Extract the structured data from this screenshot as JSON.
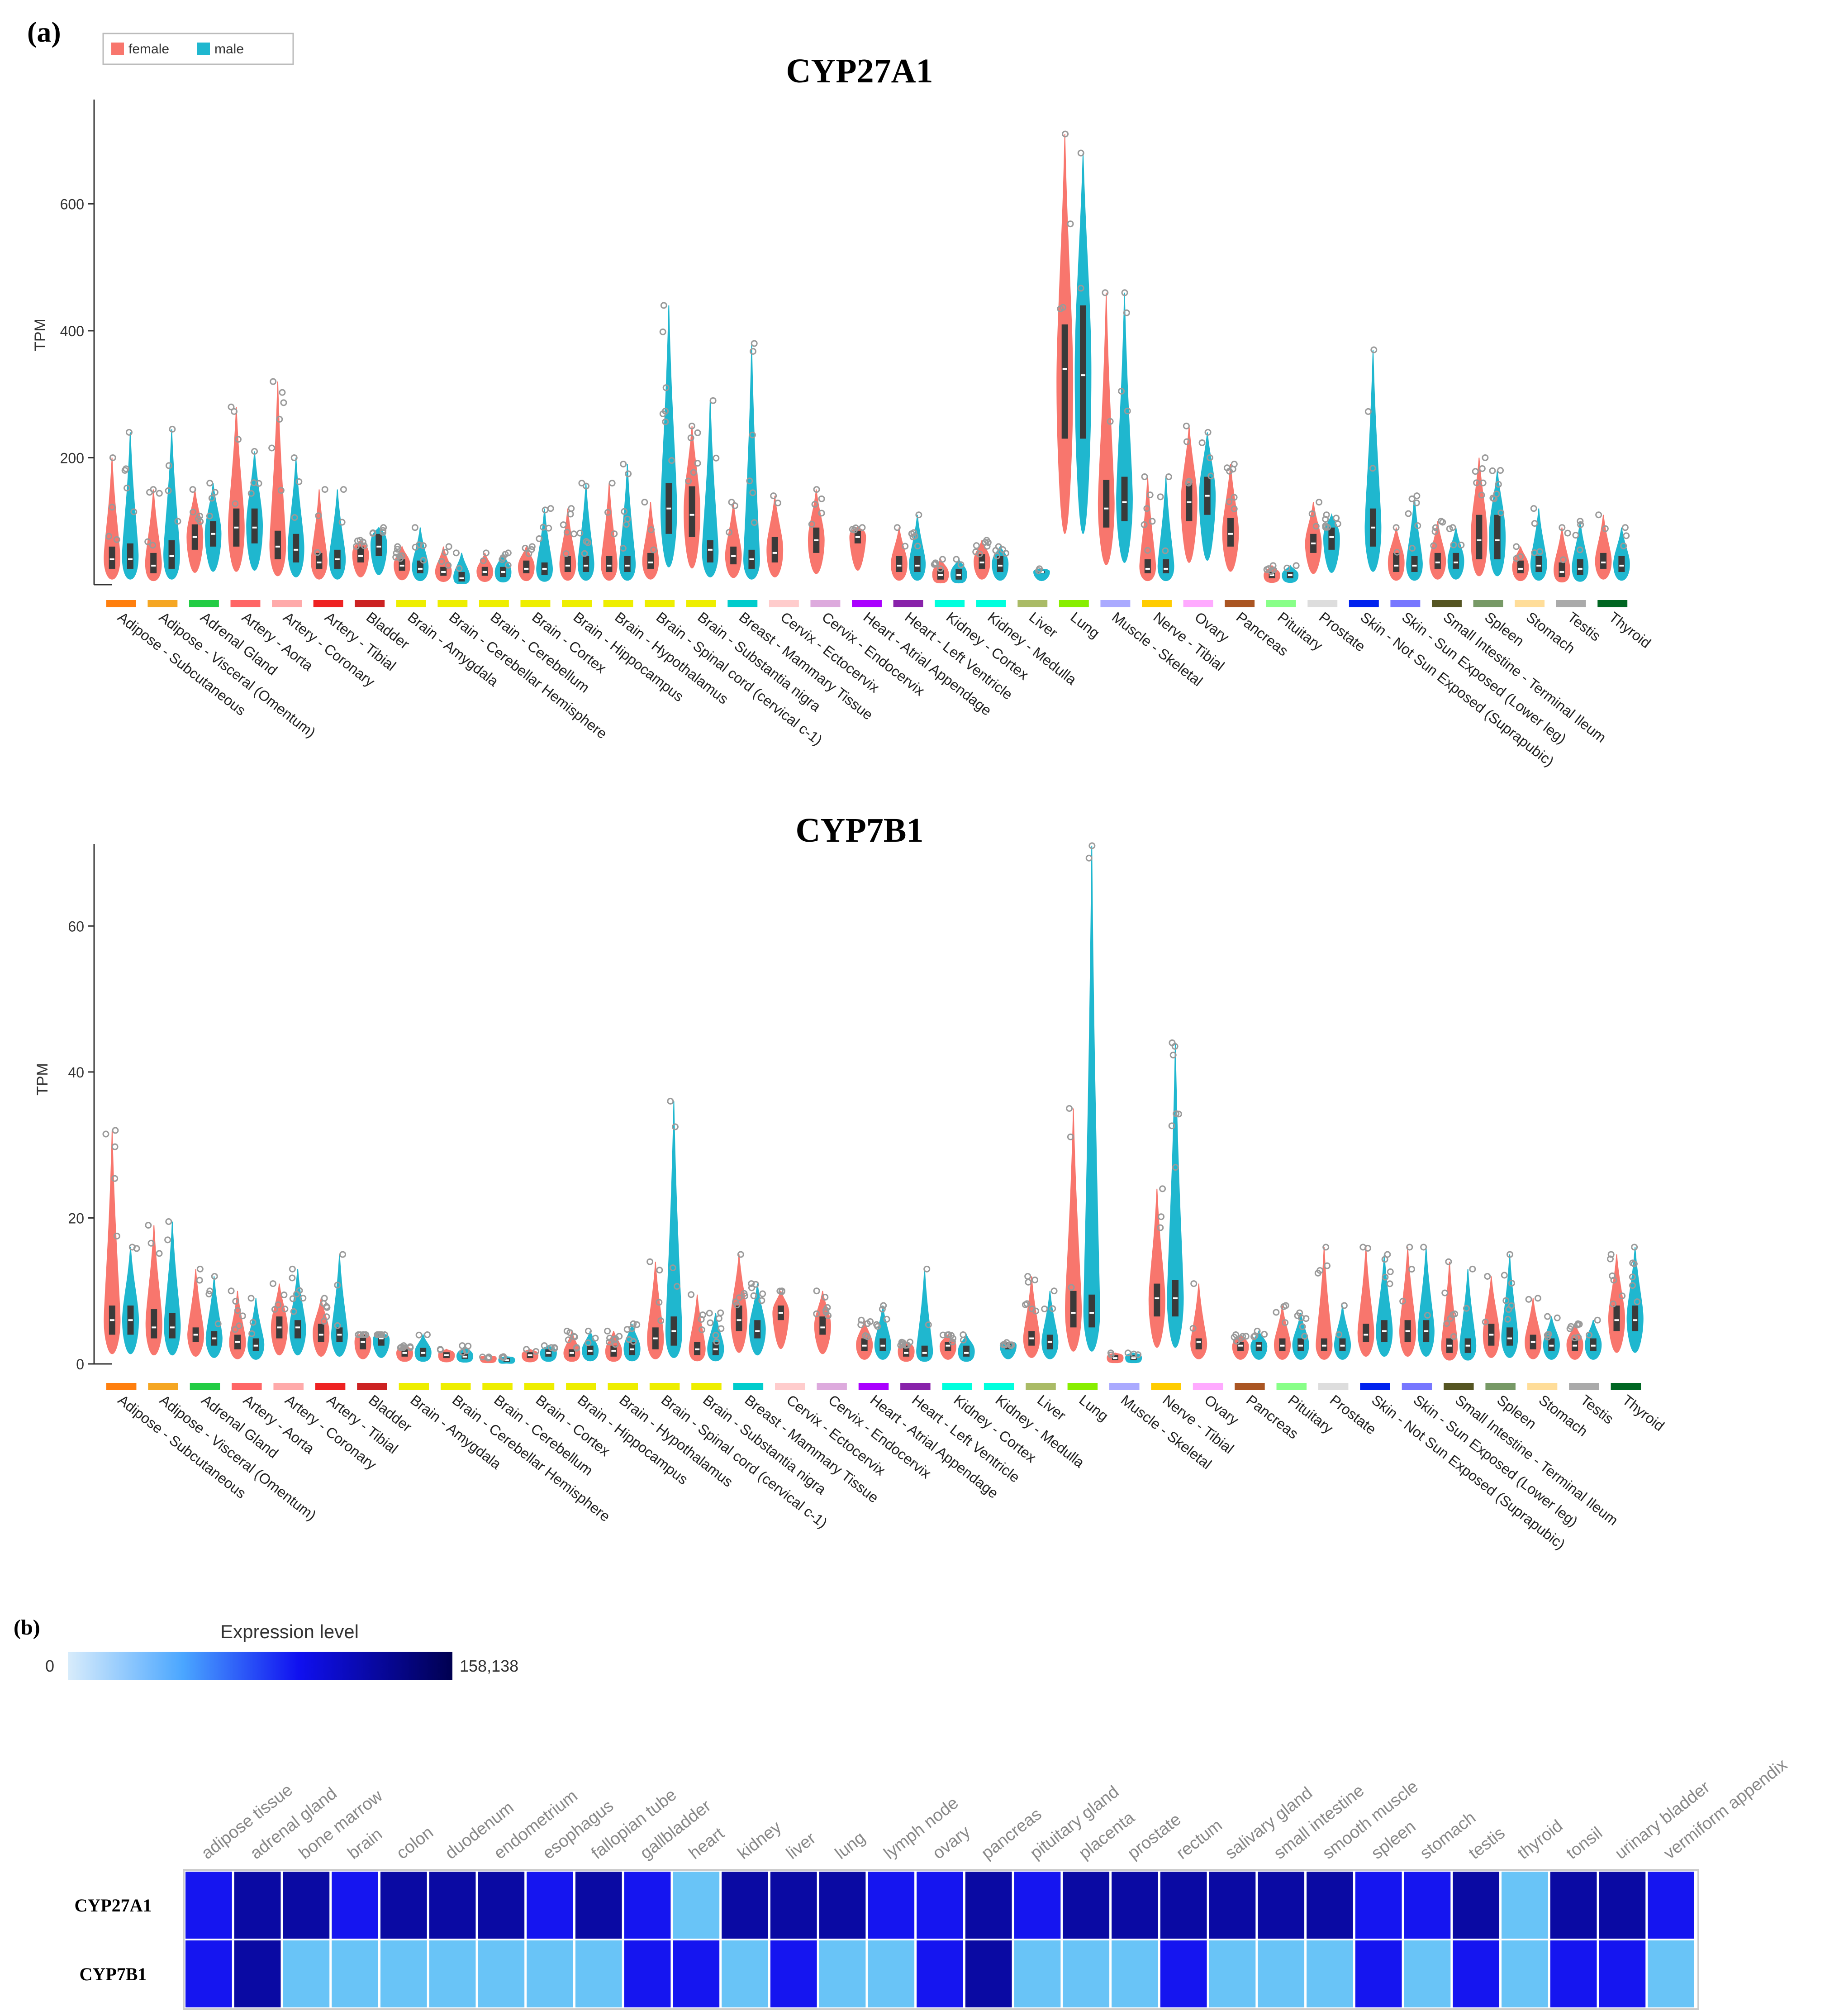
{
  "panel_a": {
    "label": "(a)"
  },
  "panel_b": {
    "label": "(b)"
  },
  "colors": {
    "female": "#f8766d",
    "male": "#1fb7cf",
    "box": "#3a3a3a",
    "outlier": "#9a9a9a",
    "axis": "#333333",
    "heat_low": "#69c4f7",
    "heat_mid": "#1515f0",
    "heat_high": "#0a0aa3"
  },
  "legend": {
    "female": "female",
    "male": "male"
  },
  "tissues": [
    "Adipose - Subcutaneous",
    "Adipose - Visceral (Omentum)",
    "Adrenal Gland",
    "Artery - Aorta",
    "Artery - Coronary",
    "Artery - Tibial",
    "Bladder",
    "Brain - Amygdala",
    "Brain - Cerebellar Hemisphere",
    "Brain - Cerebellum",
    "Brain - Cortex",
    "Brain - Hippocampus",
    "Brain - Hypothalamus",
    "Brain - Spinal cord (cervical c-1)",
    "Brain - Substantia nigra",
    "Breast - Mammary Tissue",
    "Cervix - Ectocervix",
    "Cervix - Endocervix",
    "Heart - Atrial Appendage",
    "Heart - Left Ventricle",
    "Kidney - Cortex",
    "Kidney - Medulla",
    "Liver",
    "Lung",
    "Muscle - Skeletal",
    "Nerve - Tibial",
    "Ovary",
    "Pancreas",
    "Pituitary",
    "Prostate",
    "Skin - Not Sun Exposed (Suprapubic)",
    "Skin - Sun Exposed (Lower leg)",
    "Small Intestine - Terminal Ileum",
    "Spleen",
    "Stomach",
    "Testis",
    "Thyroid"
  ],
  "tissue_colors": [
    "#ff7f0e",
    "#f5a623",
    "#22cc44",
    "#ff6666",
    "#ffaaaa",
    "#ee2222",
    "#cc2222",
    "#eeee00",
    "#eeee00",
    "#eeee00",
    "#eeee00",
    "#eeee00",
    "#eeee00",
    "#eeee00",
    "#eeee00",
    "#00cccc",
    "#ffcccc",
    "#ddaadd",
    "#aa00ff",
    "#8822aa",
    "#00ffdd",
    "#00ffdd",
    "#aabb66",
    "#88ee00",
    "#aaaaff",
    "#ffcc00",
    "#ffaaff",
    "#aa5522",
    "#88ff88",
    "#dddddd",
    "#0022ee",
    "#7777ff",
    "#555522",
    "#779966",
    "#ffdd99",
    "#aaaaaa",
    "#006622"
  ],
  "chart_data": [
    {
      "type": "violin",
      "title": "CYP27A1",
      "ylabel": "TPM",
      "ylim": [
        0,
        750
      ],
      "yticks": [
        200,
        400,
        600
      ],
      "categories_ref": "tissues",
      "series": [
        {
          "name": "female",
          "medians": [
            40,
            30,
            75,
            90,
            60,
            35,
            45,
            30,
            20,
            20,
            25,
            30,
            30,
            35,
            110,
            45,
            50,
            70,
            75,
            30,
            15,
            35,
            null,
            340,
            120,
            25,
            130,
            80,
            15,
            65,
            null,
            30,
            35,
            70,
            25,
            20,
            35
          ],
          "q1": [
            25,
            18,
            55,
            60,
            40,
            25,
            35,
            22,
            14,
            14,
            18,
            20,
            20,
            25,
            75,
            32,
            35,
            50,
            65,
            20,
            8,
            25,
            null,
            230,
            90,
            18,
            100,
            60,
            10,
            50,
            null,
            20,
            25,
            40,
            18,
            12,
            25
          ],
          "q3": [
            60,
            50,
            95,
            120,
            85,
            50,
            60,
            40,
            28,
            28,
            38,
            45,
            45,
            50,
            155,
            60,
            75,
            90,
            85,
            45,
            25,
            48,
            null,
            410,
            165,
            40,
            160,
            105,
            20,
            80,
            null,
            50,
            50,
            110,
            38,
            35,
            50
          ],
          "top": [
            200,
            150,
            150,
            280,
            320,
            150,
            70,
            60,
            60,
            50,
            60,
            120,
            160,
            130,
            250,
            130,
            140,
            150,
            90,
            90,
            40,
            70,
            null,
            710,
            460,
            170,
            250,
            190,
            30,
            130,
            null,
            90,
            100,
            200,
            60,
            90,
            110
          ]
        },
        {
          "name": "male",
          "medians": [
            40,
            45,
            80,
            90,
            55,
            40,
            60,
            25,
            10,
            20,
            25,
            30,
            30,
            120,
            55,
            40,
            null,
            null,
            null,
            30,
            15,
            30,
            20,
            330,
            130,
            25,
            140,
            null,
            15,
            75,
            90,
            30,
            35,
            70,
            30,
            25,
            30
          ],
          "q1": [
            25,
            25,
            60,
            65,
            35,
            25,
            45,
            18,
            5,
            12,
            15,
            20,
            20,
            80,
            35,
            25,
            null,
            null,
            null,
            20,
            8,
            20,
            18,
            230,
            100,
            18,
            110,
            null,
            10,
            55,
            60,
            20,
            25,
            40,
            20,
            15,
            20
          ],
          "q3": [
            65,
            70,
            100,
            120,
            80,
            55,
            80,
            38,
            20,
            28,
            35,
            45,
            45,
            160,
            70,
            55,
            null,
            null,
            null,
            45,
            25,
            45,
            22,
            440,
            170,
            40,
            170,
            null,
            20,
            90,
            120,
            45,
            50,
            110,
            45,
            40,
            45
          ],
          "top": [
            240,
            245,
            160,
            210,
            200,
            150,
            90,
            90,
            50,
            50,
            120,
            160,
            190,
            440,
            290,
            380,
            null,
            null,
            null,
            110,
            40,
            60,
            25,
            680,
            460,
            170,
            240,
            null,
            30,
            110,
            370,
            140,
            90,
            180,
            120,
            100,
            90
          ]
        }
      ]
    },
    {
      "type": "violin",
      "title": "CYP7B1",
      "ylabel": "TPM",
      "ylim": [
        0,
        70
      ],
      "yticks": [
        0,
        20,
        40,
        60
      ],
      "categories_ref": "tissues",
      "series": [
        {
          "name": "female",
          "medians": [
            6,
            5,
            4,
            3,
            5,
            4,
            3,
            1.5,
            1.2,
            0.8,
            1.2,
            1.5,
            1.8,
            3.5,
            2,
            6,
            7,
            5,
            2.5,
            1.5,
            2.5,
            null,
            3.5,
            7,
            0.8,
            9,
            3,
            2.5,
            2.5,
            2.5,
            4,
            4.5,
            2.5,
            4,
            3,
            2.5,
            6
          ],
          "q1": [
            4,
            3.5,
            3,
            2,
            3.5,
            3,
            2,
            1,
            0.8,
            0.5,
            0.8,
            1,
            1,
            2,
            1.2,
            4.5,
            6,
            4,
            1.8,
            1,
            1.8,
            null,
            2.5,
            5,
            0.5,
            6.5,
            2,
            1.8,
            1.8,
            1.8,
            3,
            3,
            1.5,
            2.5,
            2,
            1.8,
            4.5
          ],
          "q3": [
            8,
            7.5,
            5,
            4,
            6.5,
            5.5,
            4,
            2,
            1.6,
            1,
            1.6,
            2,
            2.5,
            5,
            3,
            8,
            8,
            6.5,
            3.5,
            2.5,
            3,
            null,
            4.5,
            10,
            1.2,
            11,
            3.5,
            3,
            3.5,
            3.5,
            5.5,
            6,
            3.5,
            5.5,
            4,
            3.5,
            8
          ],
          "top": [
            32,
            19,
            13,
            10,
            11,
            9,
            4,
            2.5,
            2,
            0.8,
            2,
            4.5,
            4.5,
            14,
            9.5,
            15,
            10,
            10,
            6,
            3,
            4,
            null,
            12,
            35,
            1.5,
            24,
            11,
            4,
            8,
            16,
            16,
            16,
            14,
            12,
            9,
            5.5,
            15
          ]
        },
        {
          "name": "male",
          "medians": [
            6,
            5,
            3.5,
            2.5,
            5,
            4,
            3.5,
            1.5,
            1,
            0.5,
            1.5,
            1.8,
            2,
            4.5,
            2,
            4.5,
            null,
            null,
            2.5,
            1.5,
            1.5,
            2.5,
            3,
            7,
            0.8,
            9,
            null,
            2.5,
            2.5,
            2.5,
            4.5,
            4.5,
            2.5,
            3.5,
            2.5,
            2.5,
            6
          ],
          "q1": [
            4,
            3.5,
            2.5,
            1.8,
            3.5,
            3,
            2.5,
            1,
            0.7,
            0.3,
            1,
            1.2,
            1.2,
            2.5,
            1.2,
            3.5,
            null,
            null,
            1.8,
            1,
            1,
            2,
            2,
            5,
            0.5,
            6.5,
            null,
            1.8,
            1.8,
            1.8,
            3,
            3,
            1.5,
            2.5,
            1.8,
            1.8,
            4.5
          ],
          "q3": [
            8,
            7,
            4.5,
            3.5,
            6,
            5,
            4,
            2.2,
            1.5,
            0.8,
            2,
            2.5,
            3,
            6.5,
            3,
            6,
            null,
            null,
            3.5,
            2.5,
            2.5,
            3,
            4,
            9.5,
            1.2,
            11.5,
            null,
            3,
            3.5,
            3.5,
            6,
            6,
            3.5,
            5,
            3.5,
            3.5,
            8
          ],
          "top": [
            16,
            19.5,
            12,
            9,
            13,
            15,
            4,
            4,
            2.5,
            1,
            2.5,
            4.5,
            5.5,
            36,
            7,
            11,
            null,
            null,
            8,
            13,
            4,
            2.5,
            10,
            71,
            1.5,
            44,
            null,
            4.5,
            7,
            8,
            15,
            16,
            13,
            15,
            6.5,
            6,
            16
          ]
        }
      ]
    },
    {
      "type": "heatmap",
      "legend_title": "Expression level",
      "legend_min": "0",
      "legend_max": "158,138",
      "columns": [
        "adipose tissue",
        "adrenal gland",
        "bone marrow",
        "brain",
        "colon",
        "duodenum",
        "endometrium",
        "esophagus",
        "fallopian tube",
        "gallbladder",
        "heart",
        "kidney",
        "liver",
        "lung",
        "lymph node",
        "ovary",
        "pancreas",
        "pituitary gland",
        "placenta",
        "prostate",
        "rectum",
        "salivary gland",
        "small intestine",
        "smooth muscle",
        "spleen",
        "stomach",
        "testis",
        "thyroid",
        "tonsil",
        "urinary bladder",
        "vermiform appendix"
      ],
      "rows": [
        "CYP27A1",
        "CYP7B1"
      ],
      "levels": [
        [
          "mid",
          "high",
          "high",
          "mid",
          "high",
          "high",
          "high",
          "mid",
          "high",
          "mid",
          "low",
          "high",
          "high",
          "high",
          "mid",
          "mid",
          "high",
          "mid",
          "high",
          "high",
          "high",
          "high",
          "high",
          "high",
          "mid",
          "mid",
          "high",
          "low",
          "high",
          "high",
          "mid"
        ],
        [
          "mid",
          "high",
          "low",
          "low",
          "low",
          "low",
          "low",
          "low",
          "low",
          "mid",
          "mid",
          "low",
          "mid",
          "low",
          "low",
          "mid",
          "high",
          "low",
          "low",
          "low",
          "mid",
          "low",
          "low",
          "low",
          "mid",
          "low",
          "mid",
          "low",
          "mid",
          "mid",
          "low"
        ]
      ]
    }
  ]
}
